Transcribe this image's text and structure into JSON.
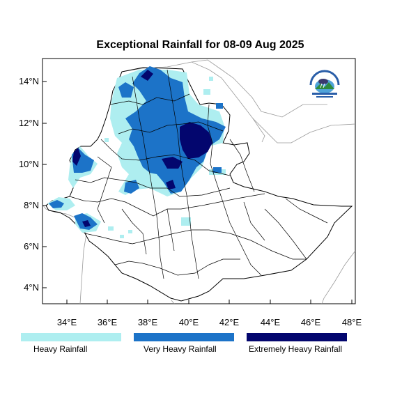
{
  "title": "Exceptional Rainfall for 08-09 Aug 2025",
  "y_ticks": [
    "14°N",
    "12°N",
    "10°N",
    "8°N",
    "6°N",
    "4°N"
  ],
  "x_ticks": [
    "34°E",
    "36°E",
    "38°E",
    "40°E",
    "42°E",
    "44°E",
    "46°E",
    "48°E"
  ],
  "legend": [
    {
      "label": "Heavy Rainfall",
      "color": "#aeeef0"
    },
    {
      "label": "Very Heavy Rainfall",
      "color": "#1c73c8"
    },
    {
      "label": "Extremely Heavy Rainfall",
      "color": "#03066e"
    }
  ],
  "logo": {
    "name": "meteorology-agency-logo"
  }
}
